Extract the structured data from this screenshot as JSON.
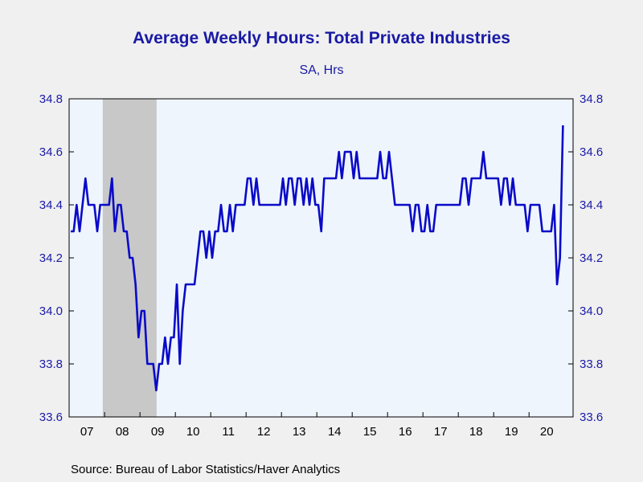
{
  "title": "Average Weekly Hours: Total Private Industries",
  "subtitle": "SA, Hrs",
  "source": "Source:  Bureau of Labor Statistics/Haver Analytics",
  "colors": {
    "line": "#0a0ac8",
    "plot_bg": "#eef5fd",
    "recession": "#c8c8c8",
    "text": "#1a1aa6"
  },
  "chart_data": {
    "type": "line",
    "title": "Average Weekly Hours: Total Private Industries",
    "subtitle": "SA, Hrs",
    "xlabel": "",
    "ylabel": "",
    "ylim": [
      33.6,
      34.8
    ],
    "yticks": [
      "34.8",
      "34.6",
      "34.4",
      "34.2",
      "34.0",
      "33.8",
      "33.6"
    ],
    "xticks": [
      "07",
      "08",
      "09",
      "10",
      "11",
      "12",
      "13",
      "14",
      "15",
      "16",
      "17",
      "18",
      "19",
      "20"
    ],
    "recession": {
      "start": "2007-12",
      "end": "2009-06"
    },
    "series": [
      {
        "start": "2007-01",
        "frequency": "monthly",
        "values": [
          34.3,
          34.3,
          34.4,
          34.3,
          34.4,
          34.5,
          34.4,
          34.4,
          34.4,
          34.3,
          34.4,
          34.4,
          34.4,
          34.4,
          34.5,
          34.3,
          34.4,
          34.4,
          34.3,
          34.3,
          34.2,
          34.2,
          34.1,
          33.9,
          34.0,
          34.0,
          33.8,
          33.8,
          33.8,
          33.7,
          33.8,
          33.8,
          33.9,
          33.8,
          33.9,
          33.9,
          34.1,
          33.8,
          34.0,
          34.1,
          34.1,
          34.1,
          34.1,
          34.2,
          34.3,
          34.3,
          34.2,
          34.3,
          34.2,
          34.3,
          34.3,
          34.4,
          34.3,
          34.3,
          34.4,
          34.3,
          34.4,
          34.4,
          34.4,
          34.4,
          34.5,
          34.5,
          34.4,
          34.5,
          34.4,
          34.4,
          34.4,
          34.4,
          34.4,
          34.4,
          34.4,
          34.4,
          34.5,
          34.4,
          34.5,
          34.5,
          34.4,
          34.5,
          34.5,
          34.4,
          34.5,
          34.4,
          34.5,
          34.4,
          34.4,
          34.3,
          34.5,
          34.5,
          34.5,
          34.5,
          34.5,
          34.6,
          34.5,
          34.6,
          34.6,
          34.6,
          34.5,
          34.6,
          34.5,
          34.5,
          34.5,
          34.5,
          34.5,
          34.5,
          34.5,
          34.6,
          34.5,
          34.5,
          34.6,
          34.5,
          34.4,
          34.4,
          34.4,
          34.4,
          34.4,
          34.4,
          34.3,
          34.4,
          34.4,
          34.3,
          34.3,
          34.4,
          34.3,
          34.3,
          34.4,
          34.4,
          34.4,
          34.4,
          34.4,
          34.4,
          34.4,
          34.4,
          34.4,
          34.5,
          34.5,
          34.4,
          34.5,
          34.5,
          34.5,
          34.5,
          34.6,
          34.5,
          34.5,
          34.5,
          34.5,
          34.5,
          34.4,
          34.5,
          34.5,
          34.4,
          34.5,
          34.4,
          34.4,
          34.4,
          34.4,
          34.3,
          34.4,
          34.4,
          34.4,
          34.4,
          34.3,
          34.3,
          34.3,
          34.3,
          34.4,
          34.1,
          34.2,
          34.7
        ]
      }
    ]
  }
}
